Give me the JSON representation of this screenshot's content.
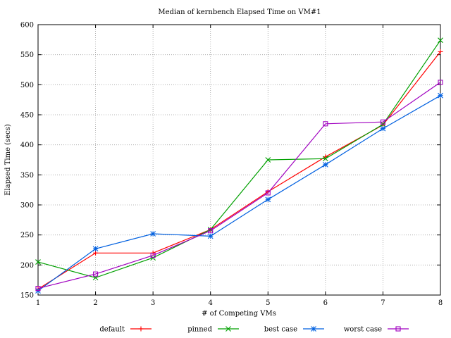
{
  "chart_data": {
    "type": "line",
    "title": "Median of kernbench Elapsed Time on VM#1",
    "xlabel": "# of Competing VMs",
    "ylabel": "Elapsed Time (secs)",
    "x": [
      1,
      2,
      3,
      4,
      5,
      6,
      7,
      8
    ],
    "xlim": [
      1,
      8
    ],
    "ylim": [
      150,
      600
    ],
    "yticks": [
      150,
      200,
      250,
      300,
      350,
      400,
      450,
      500,
      550,
      600
    ],
    "xticks": [
      1,
      2,
      3,
      4,
      5,
      6,
      7,
      8
    ],
    "grid": true,
    "legend_position": "bottom",
    "series": [
      {
        "name": "default",
        "color": "#ff0000",
        "marker": "plus",
        "values": [
          160,
          220,
          220,
          259,
          322,
          380,
          433,
          555
        ]
      },
      {
        "name": "pinned",
        "color": "#00a000",
        "marker": "cross",
        "values": [
          205,
          179,
          212,
          259,
          375,
          377,
          434,
          574
        ]
      },
      {
        "name": "best case",
        "color": "#0060e0",
        "marker": "star",
        "values": [
          157,
          227,
          252,
          248,
          309,
          367,
          427,
          482
        ]
      },
      {
        "name": "worst case",
        "color": "#a000c0",
        "marker": "square",
        "values": [
          161,
          185,
          216,
          257,
          320,
          435,
          438,
          504
        ]
      }
    ]
  }
}
